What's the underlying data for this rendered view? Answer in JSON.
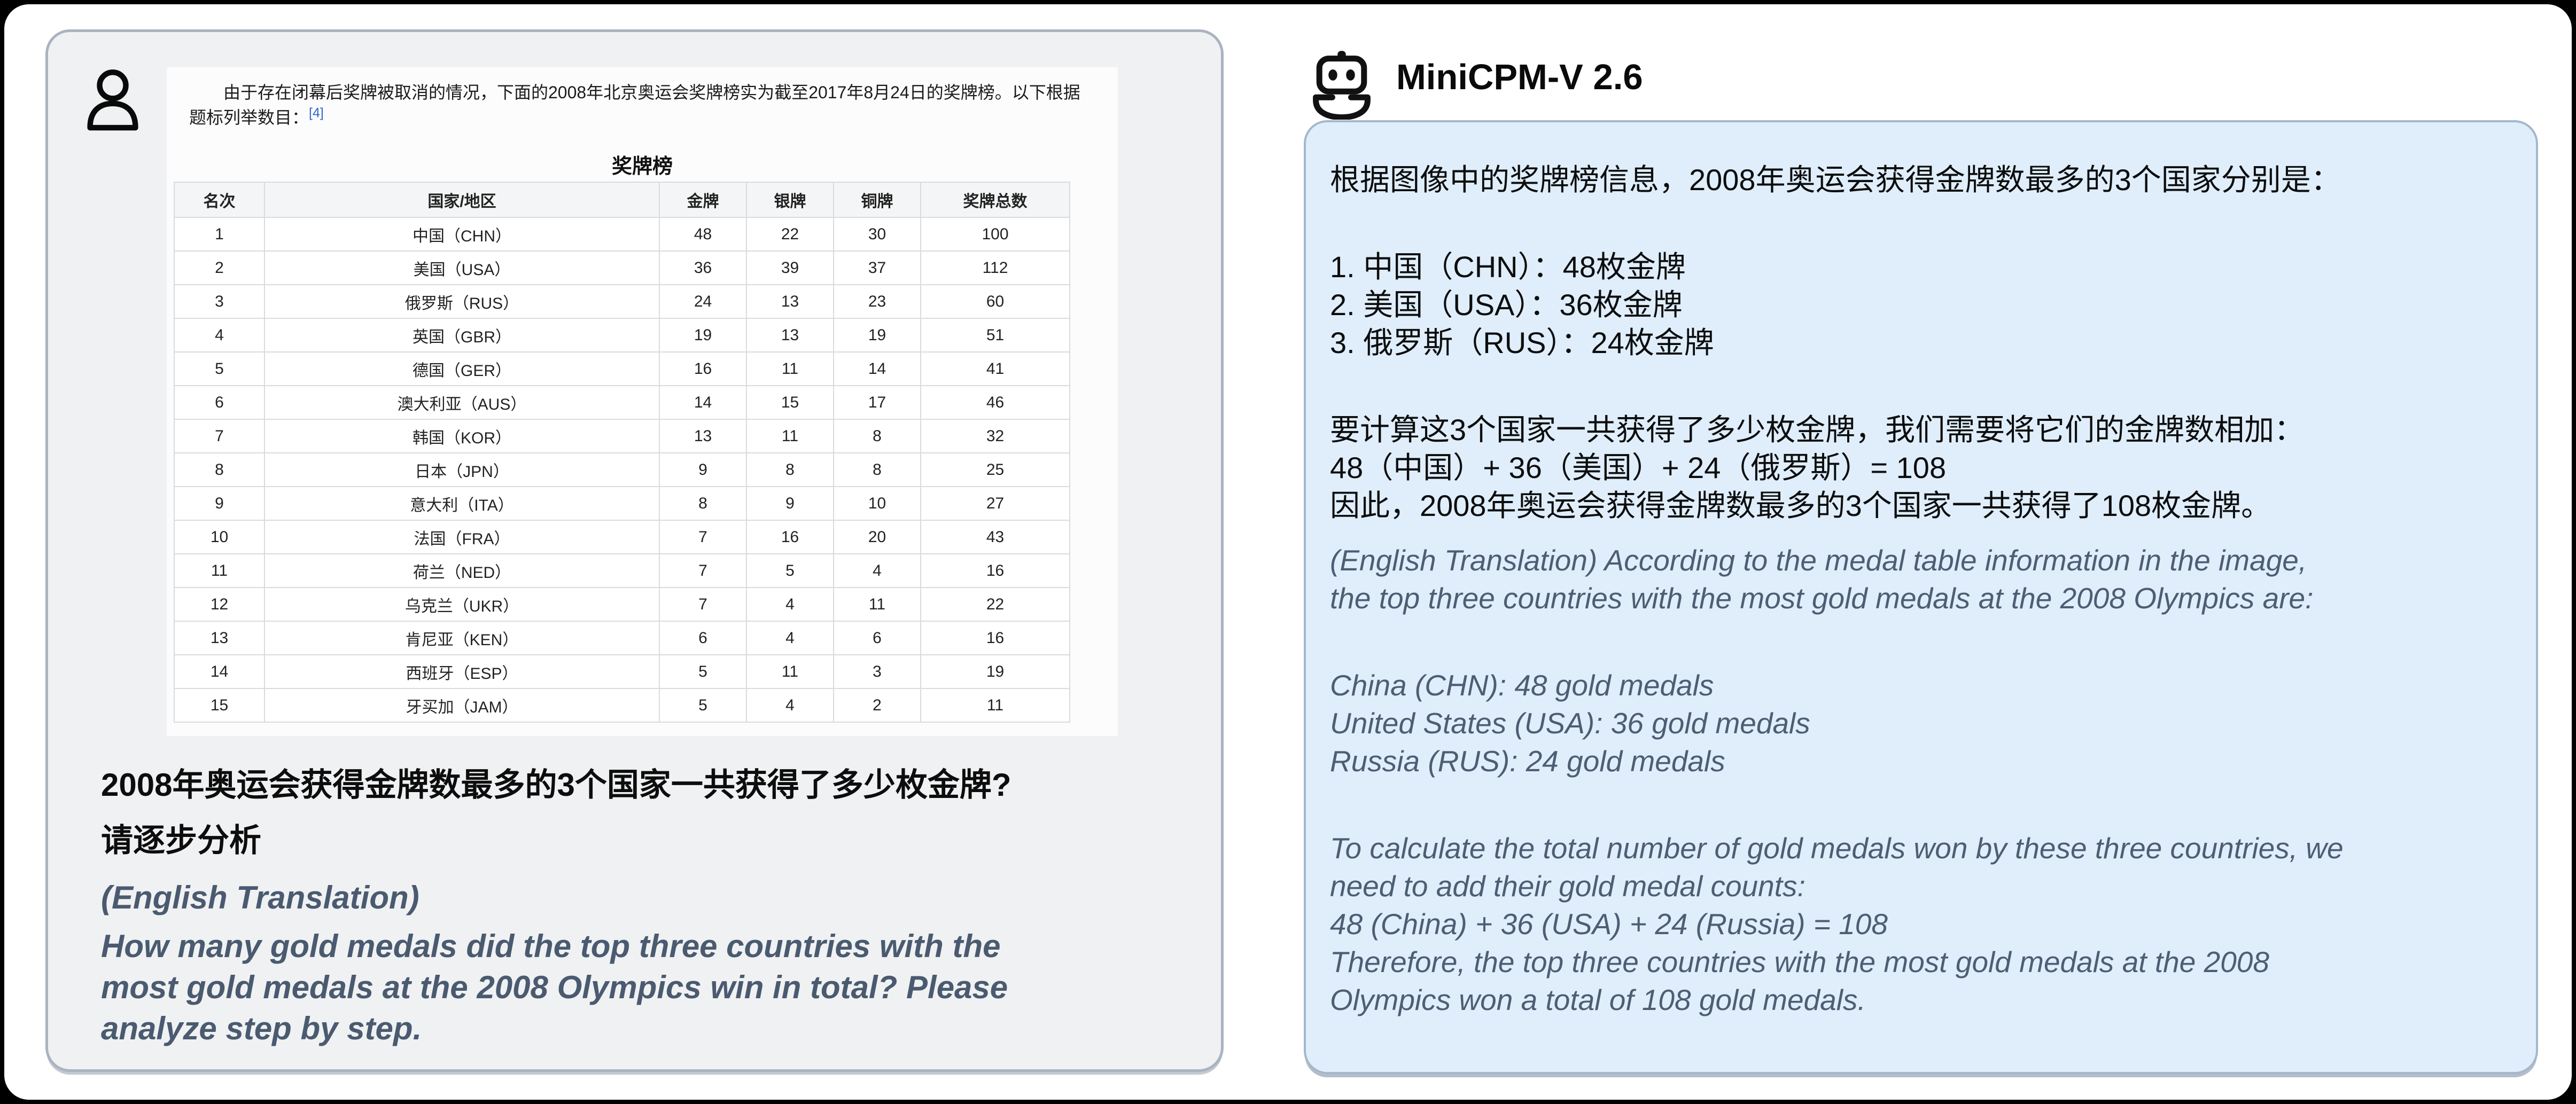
{
  "user": {
    "image": {
      "paragraph": "由于存在闭幕后奖牌被取消的情况，下面的2008年北京奥运会奖牌榜实为截至2017年8月24日的奖牌榜。以下根据题标列举数目：",
      "ref_marker": "[4]",
      "table_title": "奖牌榜",
      "table": {
        "headers": [
          "名次",
          "国家/地区",
          "金牌",
          "银牌",
          "铜牌",
          "奖牌总数"
        ],
        "rows": [
          [
            "1",
            "中国（CHN）",
            "48",
            "22",
            "30",
            "100"
          ],
          [
            "2",
            "美国（USA）",
            "36",
            "39",
            "37",
            "112"
          ],
          [
            "3",
            "俄罗斯（RUS）",
            "24",
            "13",
            "23",
            "60"
          ],
          [
            "4",
            "英国（GBR）",
            "19",
            "13",
            "19",
            "51"
          ],
          [
            "5",
            "德国（GER）",
            "16",
            "11",
            "14",
            "41"
          ],
          [
            "6",
            "澳大利亚（AUS）",
            "14",
            "15",
            "17",
            "46"
          ],
          [
            "7",
            "韩国（KOR）",
            "13",
            "11",
            "8",
            "32"
          ],
          [
            "8",
            "日本（JPN）",
            "9",
            "8",
            "8",
            "25"
          ],
          [
            "9",
            "意大利（ITA）",
            "8",
            "9",
            "10",
            "27"
          ],
          [
            "10",
            "法国（FRA）",
            "7",
            "16",
            "20",
            "43"
          ],
          [
            "11",
            "荷兰（NED）",
            "7",
            "5",
            "4",
            "16"
          ],
          [
            "12",
            "乌克兰（UKR）",
            "7",
            "4",
            "11",
            "22"
          ],
          [
            "13",
            "肯尼亚（KEN）",
            "6",
            "4",
            "6",
            "16"
          ],
          [
            "14",
            "西班牙（ESP）",
            "5",
            "11",
            "3",
            "19"
          ],
          [
            "15",
            "牙买加（JAM）",
            "5",
            "4",
            "2",
            "11"
          ]
        ]
      }
    },
    "question_lines": [
      "2008年奥运会获得金牌数最多的3个国家一共获得了多少枚金牌?",
      "请逐步分析"
    ],
    "translation_lines": [
      "(English Translation)",
      "How many gold medals did the top three countries with the",
      "most gold medals at the 2008 Olympics win in total? Please",
      "analyze step by step."
    ]
  },
  "model": {
    "name": "MiniCPM-V 2.6",
    "response_cn_lines": [
      "根据图像中的奖牌榜信息，2008年奥运会获得金牌数最多的3个国家分别是：",
      "",
      "1. 中国（CHN）：48枚金牌",
      "2. 美国（USA）：36枚金牌",
      "3. 俄罗斯（RUS）：24枚金牌",
      "",
      "要计算这3个国家一共获得了多少枚金牌，我们需要将它们的金牌数相加：",
      "48（中国）+ 36（美国）+ 24（俄罗斯）= 108",
      "因此，2008年奥运会获得金牌数最多的3个国家一共获得了108枚金牌。"
    ],
    "response_en_lines": [
      "(English Translation) According to the medal table information in the image,",
      "the top three countries with the most gold medals at the 2008 Olympics are:",
      "",
      "China (CHN): 48 gold medals",
      "United States (USA): 36 gold medals",
      "Russia (RUS): 24 gold medals",
      "",
      "To calculate the total number of gold medals won by these three countries, we",
      "need to add their gold medal counts:",
      "48 (China) + 36 (USA) + 24 (Russia) = 108",
      "Therefore, the top three countries with the most gold medals at the 2008",
      "Olympics won a total of 108 gold medals."
    ]
  },
  "colors": {
    "user_panel_bg": "#f0f1f2",
    "user_panel_border": "#aab3bf",
    "bubble_bg": "#e0eefb",
    "bubble_border": "#a3b8ca",
    "translation_text": "#4a5a70",
    "reference_link": "#3366cc",
    "table_border": "#d9dbde",
    "table_header_bg": "#f4f5f6"
  }
}
